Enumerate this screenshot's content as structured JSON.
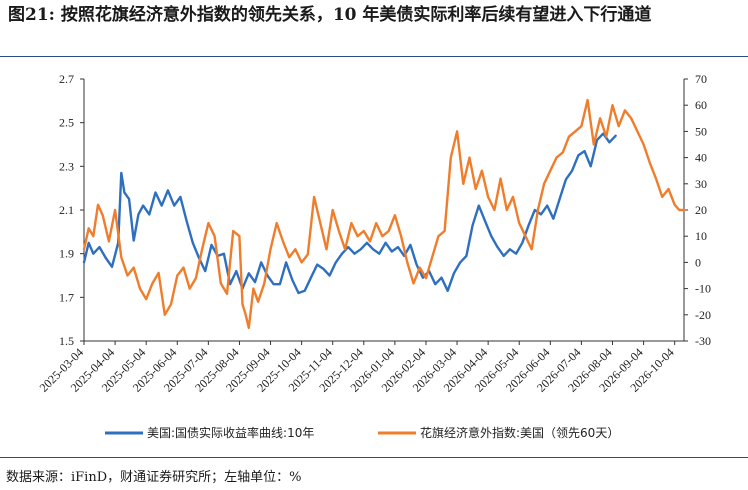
{
  "page": {
    "title": "图21: 按照花旗经济意外指数的领先关系，10 年美债实际利率后续有望进入下行通道",
    "source": "数据来源：iFinD，财通证券研究所；左轴单位：%"
  },
  "chart_data": {
    "type": "line",
    "title": "",
    "left_axis": {
      "range": [
        1.5,
        2.7
      ],
      "ticks": [
        "1.5",
        "1.7",
        "1.9",
        "2.1",
        "2.3",
        "2.5",
        "2.7"
      ]
    },
    "right_axis": {
      "range": [
        -30,
        70
      ],
      "ticks": [
        "-30",
        "-20",
        "-10",
        "0",
        "10",
        "20",
        "30",
        "40",
        "50",
        "60",
        "70"
      ]
    },
    "x_ticks": [
      "2025-03-04",
      "2025-04-04",
      "2025-05-04",
      "2025-06-04",
      "2025-07-04",
      "2025-08-04",
      "2025-09-04",
      "2025-10-04",
      "2025-11-04",
      "2025-12-04",
      "2026-01-04",
      "2026-02-04",
      "2026-03-04",
      "2026-04-04",
      "2026-05-04",
      "2026-06-04",
      "2026-07-04",
      "2026-08-04",
      "2026-09-04",
      "2026-10-04"
    ],
    "x_range_months": [
      0,
      19.3
    ],
    "grid": false,
    "legend_position": "bottom",
    "series": [
      {
        "name": "美国:国债实际收益率曲线:10年",
        "axis": "left",
        "color": "#2e6fc0",
        "x": [
          0,
          0.15,
          0.3,
          0.5,
          0.7,
          0.9,
          1.1,
          1.2,
          1.3,
          1.45,
          1.6,
          1.75,
          1.9,
          2.1,
          2.3,
          2.5,
          2.7,
          2.9,
          3.1,
          3.3,
          3.5,
          3.7,
          3.9,
          4.1,
          4.3,
          4.5,
          4.7,
          4.9,
          5.1,
          5.3,
          5.5,
          5.7,
          5.9,
          6.1,
          6.3,
          6.5,
          6.7,
          6.9,
          7.1,
          7.3,
          7.5,
          7.7,
          7.9,
          8.1,
          8.3,
          8.5,
          8.7,
          8.9,
          9.1,
          9.3,
          9.5,
          9.7,
          9.9,
          10.1,
          10.3,
          10.5,
          10.7,
          10.9,
          11.1,
          11.3,
          11.5,
          11.7,
          11.9,
          12.1,
          12.3,
          12.5,
          12.7,
          12.9,
          13.1,
          13.3,
          13.5,
          13.7,
          13.9,
          14.1,
          14.3,
          14.5,
          14.7,
          14.9,
          15.1,
          15.3,
          15.5,
          15.7,
          15.9,
          16.1,
          16.3,
          16.5,
          16.7,
          16.9,
          17.1
        ],
        "y": [
          1.86,
          1.95,
          1.9,
          1.93,
          1.88,
          1.84,
          1.95,
          2.27,
          2.18,
          2.15,
          1.96,
          2.08,
          2.12,
          2.08,
          2.18,
          2.12,
          2.19,
          2.12,
          2.16,
          2.05,
          1.95,
          1.88,
          1.82,
          1.94,
          1.89,
          1.9,
          1.76,
          1.82,
          1.74,
          1.81,
          1.77,
          1.86,
          1.8,
          1.76,
          1.76,
          1.86,
          1.78,
          1.72,
          1.73,
          1.79,
          1.85,
          1.83,
          1.8,
          1.86,
          1.9,
          1.93,
          1.9,
          1.92,
          1.95,
          1.92,
          1.9,
          1.95,
          1.91,
          1.93,
          1.89,
          1.94,
          1.85,
          1.79,
          1.82,
          1.76,
          1.79,
          1.73,
          1.81,
          1.86,
          1.89,
          2.03,
          2.12,
          2.05,
          1.98,
          1.93,
          1.89,
          1.92,
          1.9,
          1.95,
          2.03,
          2.1,
          2.08,
          2.12,
          2.06,
          2.15,
          2.24,
          2.28,
          2.35,
          2.37,
          2.3,
          2.42,
          2.45,
          2.41,
          2.44
        ],
        "y_right_extra": []
      },
      {
        "name": "花旗经济意外指数:美国（领先60天）",
        "axis": "right",
        "color": "#ef7d2b",
        "x": [
          0,
          0.15,
          0.3,
          0.45,
          0.6,
          0.8,
          1.0,
          1.2,
          1.4,
          1.6,
          1.8,
          2.0,
          2.2,
          2.4,
          2.6,
          2.8,
          3.0,
          3.2,
          3.4,
          3.6,
          3.8,
          4.0,
          4.2,
          4.4,
          4.6,
          4.8,
          5.0,
          5.1,
          5.2,
          5.3,
          5.45,
          5.6,
          5.8,
          6.0,
          6.2,
          6.4,
          6.6,
          6.8,
          7.0,
          7.2,
          7.4,
          7.6,
          7.8,
          8.0,
          8.2,
          8.4,
          8.6,
          8.8,
          9.0,
          9.2,
          9.4,
          9.6,
          9.8,
          10.0,
          10.2,
          10.4,
          10.6,
          10.8,
          11.0,
          11.2,
          11.4,
          11.6,
          11.8,
          12.0,
          12.2,
          12.4,
          12.6,
          12.8,
          13.0,
          13.2,
          13.4,
          13.6,
          13.8,
          14.0,
          14.2,
          14.4,
          14.6,
          14.8,
          15.0,
          15.2,
          15.4,
          15.6,
          15.8,
          16.0,
          16.2,
          16.4,
          16.6,
          16.8,
          17.0,
          17.2,
          17.4,
          17.6,
          17.8,
          18.0,
          18.2,
          18.4,
          18.6,
          18.8,
          19.0,
          19.15,
          19.3
        ],
        "y": [
          5,
          13,
          10,
          22,
          18,
          8,
          20,
          2,
          -5,
          -2,
          -10,
          -14,
          -8,
          -4,
          -20,
          -16,
          -5,
          -2,
          -10,
          -6,
          5,
          15,
          10,
          -8,
          -12,
          12,
          10,
          -16,
          -20,
          -25,
          -10,
          -15,
          -8,
          5,
          15,
          8,
          2,
          5,
          0,
          3,
          25,
          15,
          5,
          20,
          12,
          5,
          15,
          10,
          12,
          8,
          15,
          10,
          12,
          18,
          10,
          0,
          -8,
          -2,
          -6,
          2,
          10,
          12,
          40,
          50,
          30,
          40,
          28,
          35,
          25,
          20,
          32,
          20,
          25,
          15,
          10,
          5,
          20,
          30,
          35,
          40,
          42,
          48,
          50,
          52,
          62,
          45,
          55,
          48,
          60,
          52,
          58,
          55,
          50,
          45,
          38,
          32,
          25,
          28,
          22,
          20,
          20
        ],
        "y_right_extra": []
      }
    ]
  }
}
